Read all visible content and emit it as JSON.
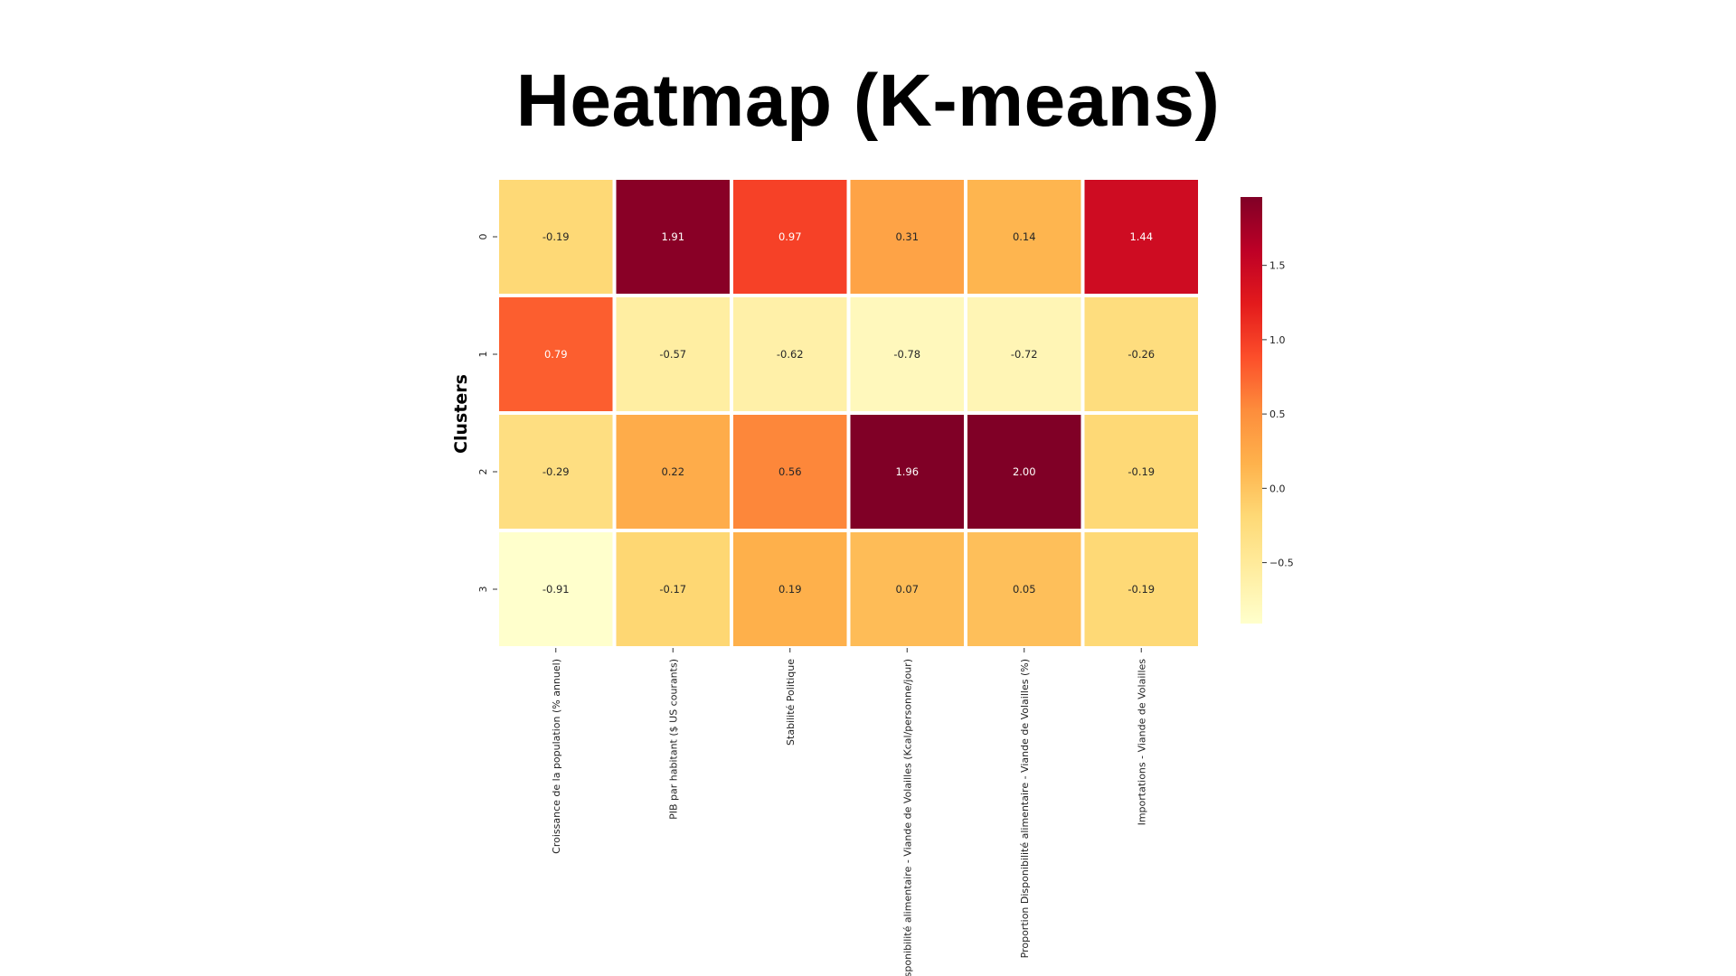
{
  "slide": {
    "title": "Heatmap (K-means)"
  },
  "chart_data": {
    "type": "heatmap",
    "title": "",
    "ylabel": "Clusters",
    "xlabel": "",
    "rows": [
      "0",
      "1",
      "2",
      "3"
    ],
    "columns": [
      "Croissance de la population (% annuel)",
      "PIB par habitant ($ US courants)",
      "Stabilité Politique",
      "Disponibilité alimentaire - Viande de Volailles (Kcal/personne/jour)",
      "Proportion Disponibilité alimentaire - Viande de Volailles (%)",
      "Importations - Viande de Volailles"
    ],
    "values": [
      [
        -0.19,
        1.91,
        0.97,
        0.31,
        0.14,
        1.44
      ],
      [
        0.79,
        -0.57,
        -0.62,
        -0.78,
        -0.72,
        -0.26
      ],
      [
        -0.29,
        0.22,
        0.56,
        1.96,
        2.0,
        -0.19
      ],
      [
        -0.91,
        -0.17,
        0.19,
        0.07,
        0.05,
        -0.19
      ]
    ],
    "value_labels": [
      [
        "-0.19",
        "1.91",
        "0.97",
        "0.31",
        "0.14",
        "1.44"
      ],
      [
        "0.79",
        "-0.57",
        "-0.62",
        "-0.78",
        "-0.72",
        "-0.26"
      ],
      [
        "-0.29",
        "0.22",
        "0.56",
        "1.96",
        "2.00",
        "-0.19"
      ],
      [
        "-0.91",
        "-0.17",
        "0.19",
        "0.07",
        "0.05",
        "-0.19"
      ]
    ],
    "colormap": "YlOrRd",
    "vmin": -0.91,
    "vmax": 1.96,
    "colorbar": {
      "ticks": [
        -0.5,
        0.0,
        0.5,
        1.0,
        1.5
      ],
      "tick_labels": [
        "−0.5",
        "0.0",
        "0.5",
        "1.0",
        "1.5"
      ]
    },
    "legend_placement": "right"
  }
}
